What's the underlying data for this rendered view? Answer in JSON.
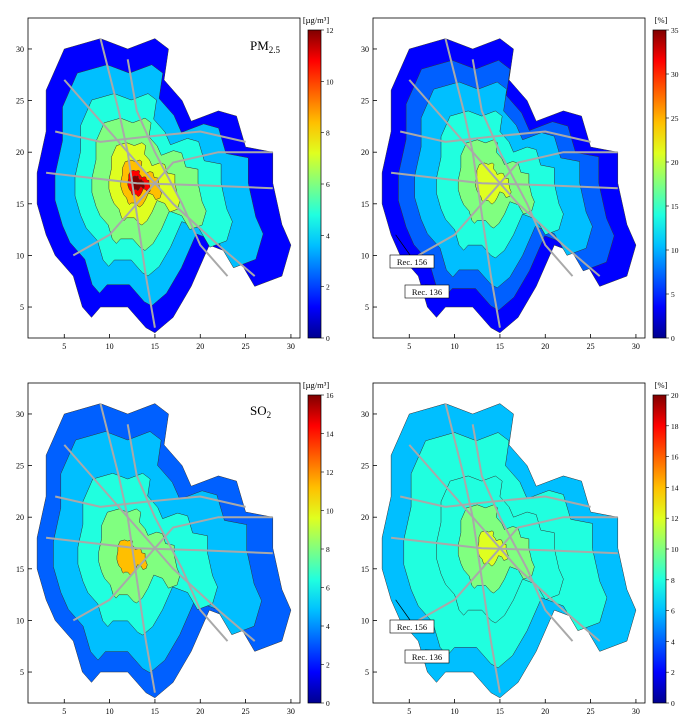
{
  "panels": [
    {
      "id": "tl",
      "pollutant_html": [
        "PM",
        "2.5"
      ],
      "unit": "[µg/m³]",
      "scale_max": 12,
      "scale_ticks": [
        "0",
        "2",
        "4",
        "6",
        "8",
        "10",
        "12"
      ],
      "hotspot": "pm",
      "callouts": []
    },
    {
      "id": "tr",
      "pollutant_html": [
        "",
        ""
      ],
      "unit": "[%]",
      "scale_max": 35,
      "scale_ticks": [
        "0",
        "5",
        "10",
        "15",
        "20",
        "25",
        "30",
        "35"
      ],
      "hotspot": "pct",
      "callouts": [
        "Rec. 156",
        "Rec. 136"
      ]
    },
    {
      "id": "bl",
      "pollutant_html": [
        "SO",
        "2"
      ],
      "unit": "[µg/m³]",
      "scale_max": 16,
      "scale_ticks": [
        "0",
        "2",
        "4",
        "6",
        "8",
        "10",
        "12",
        "14",
        "16"
      ],
      "hotspot": "so2",
      "callouts": []
    },
    {
      "id": "br",
      "pollutant_html": [
        "",
        ""
      ],
      "unit": "[%]",
      "scale_max": 20,
      "scale_ticks": [
        "0",
        "2",
        "4",
        "6",
        "8",
        "10",
        "12",
        "14",
        "16",
        "18",
        "20"
      ],
      "hotspot": "pct2",
      "callouts": [
        "Rec. 156",
        "Rec. 136"
      ]
    }
  ],
  "x_ticks": [
    "5",
    "10",
    "15",
    "20",
    "25",
    "30"
  ],
  "y_ticks": [
    "5",
    "10",
    "15",
    "20",
    "25",
    "30"
  ],
  "colors": {
    "jet": [
      "#00008f",
      "#0000ff",
      "#0060ff",
      "#00bfff",
      "#20ffdf",
      "#80ff80",
      "#dfff20",
      "#ffbf00",
      "#ff6000",
      "#ff0000",
      "#800000"
    ],
    "road": "#a9a9a9"
  }
}
